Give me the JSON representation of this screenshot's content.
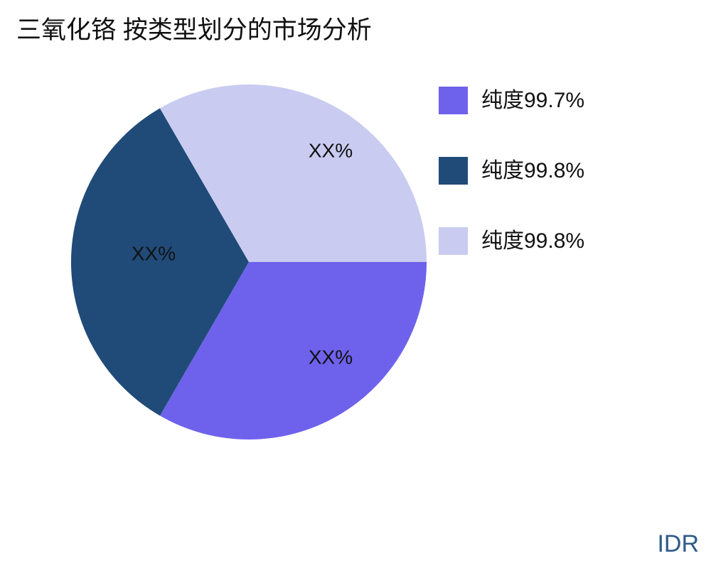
{
  "chart_data": {
    "type": "pie",
    "title": "三氧化铬 按类型划分的市场分析",
    "slices": [
      {
        "label": "纯度99.7%",
        "value": 33.33,
        "value_label": "XX%",
        "color": "#6E62EC"
      },
      {
        "label": "纯度99.8%",
        "value": 33.33,
        "value_label": "XX%",
        "color": "#204B78"
      },
      {
        "label": "纯度99.8%",
        "value": 33.34,
        "value_label": "XX%",
        "color": "#C9CCF0"
      }
    ],
    "direction": "clockwise",
    "start_angle_deg": 0,
    "legend_position": "right",
    "label_text_color": "#111111"
  },
  "footer": {
    "text": "IDR",
    "color": "#2F5B88"
  }
}
